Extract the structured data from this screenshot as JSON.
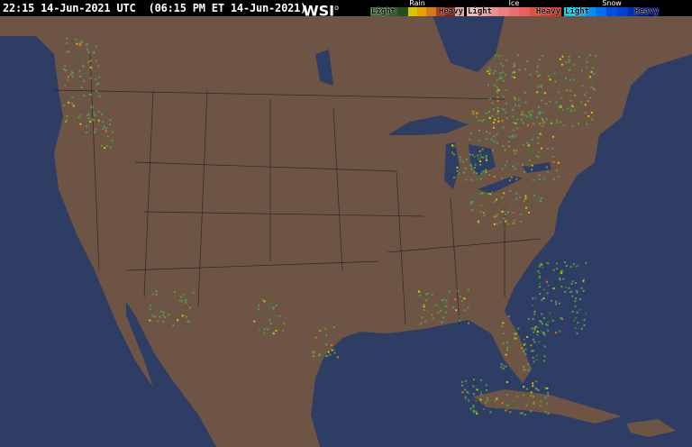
{
  "header": {
    "timestamp": "22:15 14-Jun-2021 UTC  (06:15 PM ET 14-Jun-2021)",
    "logo": "WSI"
  },
  "legend": [
    {
      "title": "Rain",
      "light": "Light",
      "heavy": "Heavy",
      "colors": [
        "#3c6e34",
        "#3a6a30",
        "#2f5a27",
        "#264d20",
        "#d8c400",
        "#e6a000",
        "#d47a1e",
        "#b33810",
        "#8a2008",
        "#e4a0a0"
      ]
    },
    {
      "title": "Ice",
      "light": "Light",
      "heavy": "Heavy",
      "colors": [
        "#f0b8b8",
        "#f0a0a0",
        "#ee9090",
        "#ec8080",
        "#ea7070",
        "#e86060",
        "#e05040",
        "#d84030",
        "#d03020"
      ]
    },
    {
      "title": "Snow",
      "light": "Light",
      "heavy": "Heavy",
      "colors": [
        "#00d0f0",
        "#00b0f0",
        "#0090f0",
        "#0070f0",
        "#0050e0",
        "#0040d0",
        "#0030b0",
        "#002090",
        "#001070"
      ]
    }
  ],
  "map": {
    "ocean_color": "#2e3d63",
    "land_color": "#6e5445",
    "lake_color": "#2e3d63",
    "precip_colors": [
      "#5a9a4a",
      "#3e7a34",
      "#d8c400",
      "#e07a10"
    ]
  }
}
